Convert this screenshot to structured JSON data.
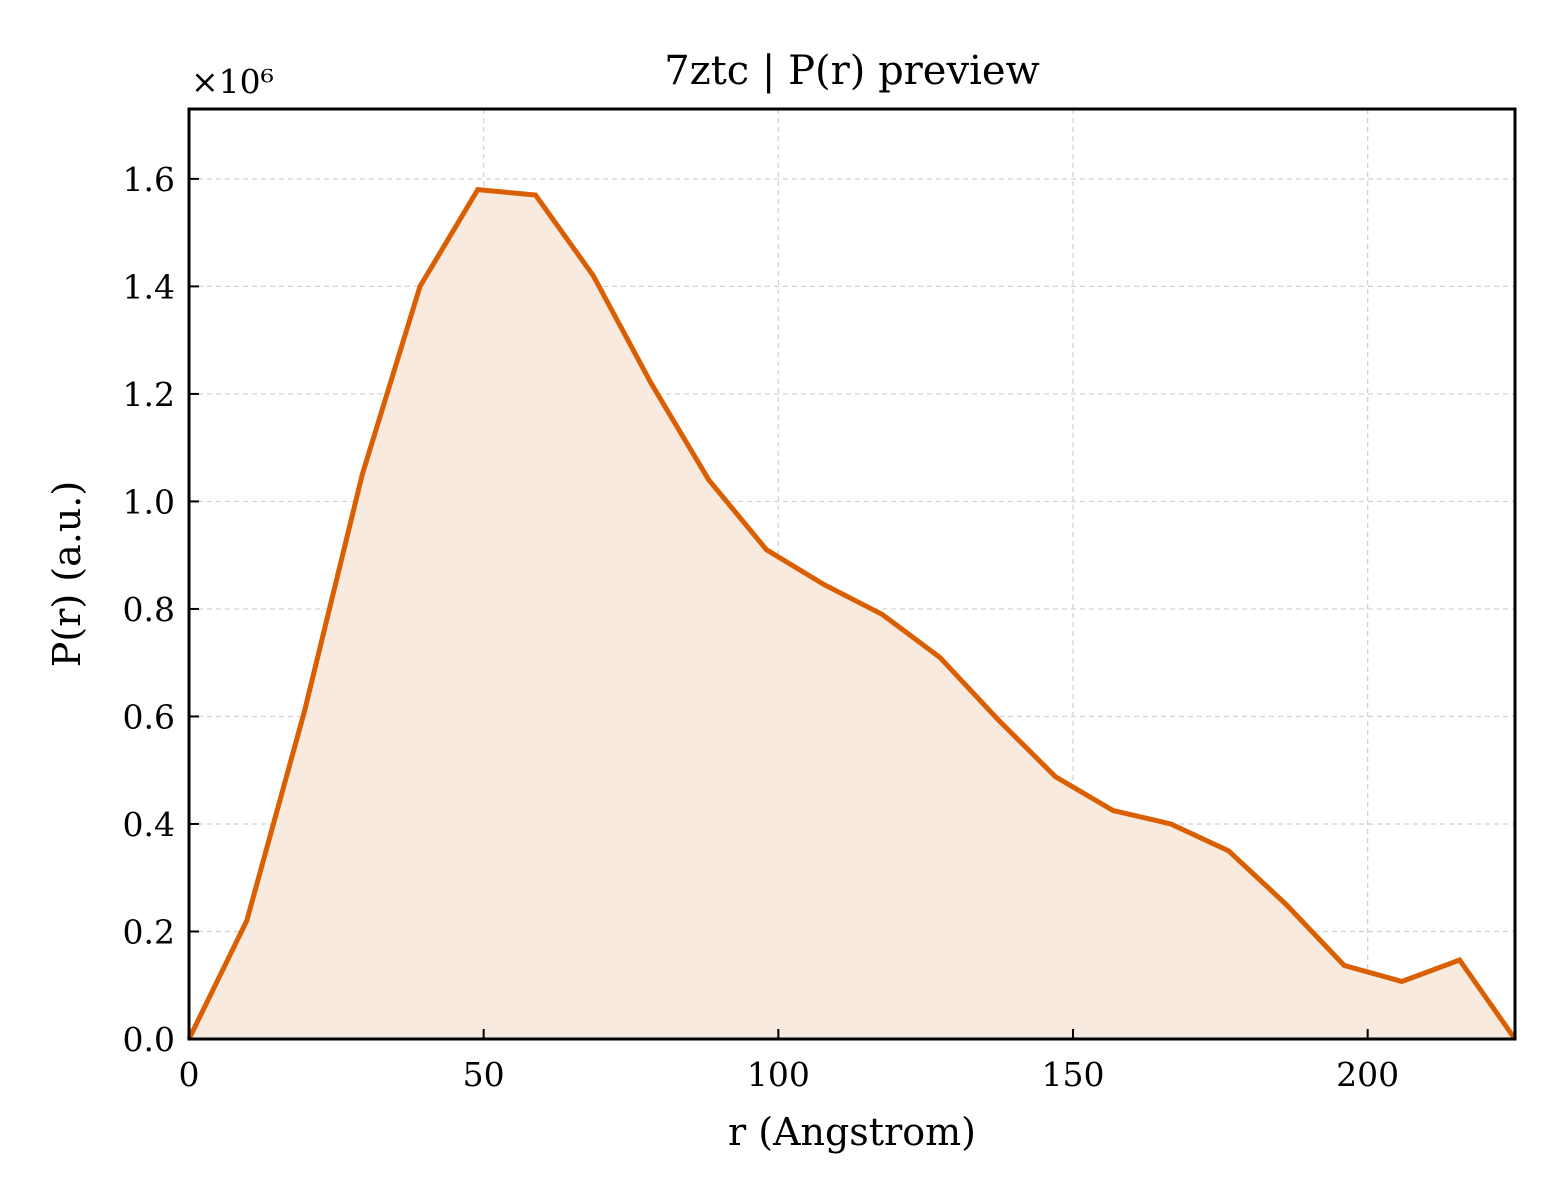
{
  "chart_data": {
    "type": "area",
    "title": "7ztc | P(r) preview",
    "xlabel": "r (Angstrom)",
    "ylabel": "P(r) (a.u.)",
    "y_multiplier_label": "×10⁶",
    "xlim": [
      0,
      225
    ],
    "ylim": [
      0,
      1.73
    ],
    "x_ticks": [
      0,
      50,
      100,
      150,
      200
    ],
    "x_tick_labels": [
      "0",
      "50",
      "100",
      "150",
      "200"
    ],
    "y_ticks": [
      0.0,
      0.2,
      0.4,
      0.6,
      0.8,
      1.0,
      1.2,
      1.4,
      1.6
    ],
    "y_tick_labels": [
      "0.0",
      "0.2",
      "0.4",
      "0.6",
      "0.8",
      "1.0",
      "1.2",
      "1.4",
      "1.6"
    ],
    "grid": true,
    "line_color": "#d95f02",
    "fill_color": "#f8eadf",
    "series": [
      {
        "x": [
          0,
          9.8,
          19.6,
          29.4,
          39.2,
          49.0,
          58.8,
          68.6,
          78.4,
          88.2,
          98.0,
          107.8,
          117.6,
          127.4,
          137.2,
          147.0,
          156.8,
          166.6,
          176.4,
          186.2,
          196.0,
          205.8,
          215.6,
          225.0
        ],
        "y": [
          0.0,
          0.22,
          0.61,
          1.05,
          1.4,
          1.58,
          1.57,
          1.42,
          1.22,
          1.04,
          0.91,
          0.845,
          0.79,
          0.71,
          0.595,
          0.488,
          0.425,
          0.4,
          0.35,
          0.25,
          0.137,
          0.107,
          0.147,
          0.0
        ]
      }
    ]
  }
}
